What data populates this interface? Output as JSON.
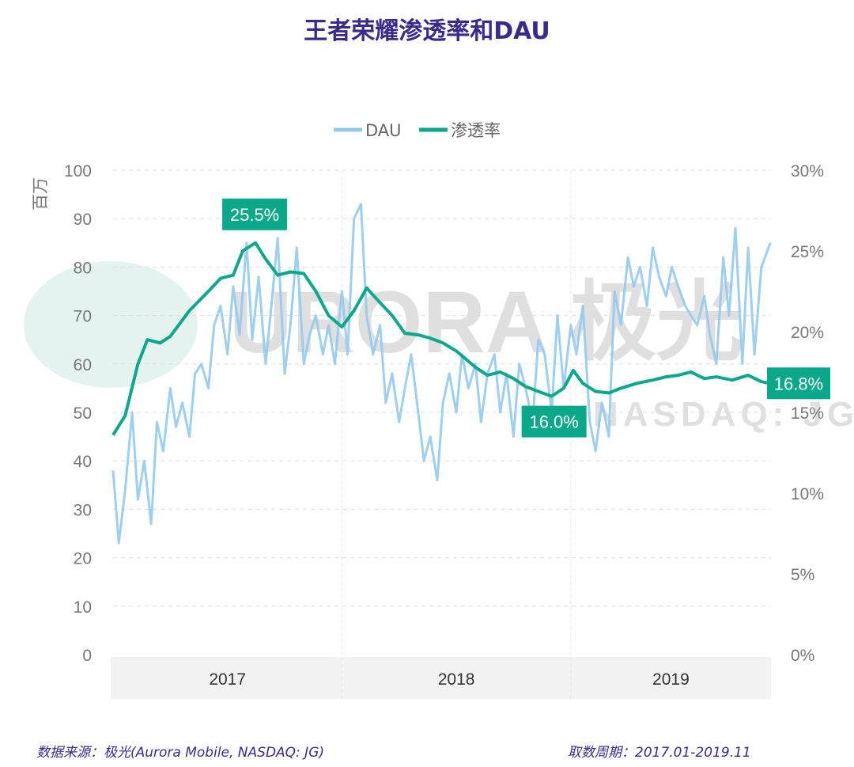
{
  "title": "王者荣耀渗透率和DAU",
  "footer": {
    "source": "数据来源：极光(Aurora Mobile, NASDAQ: JG)",
    "period": "取数周期：2017.01-2019.11"
  },
  "watermark": {
    "text": "URORA 极光",
    "subtext": "NASDAQ: JG"
  },
  "chart_data": {
    "type": "line",
    "title": "王者荣耀渗透率和DAU",
    "ylabel_left": "百万",
    "ylim_left": [
      0,
      100
    ],
    "yticks_left": [
      "0",
      "10",
      "20",
      "30",
      "40",
      "50",
      "60",
      "70",
      "80",
      "90",
      "100"
    ],
    "ylim_right": [
      0,
      30
    ],
    "yticks_right": [
      "0%",
      "5%",
      "10%",
      "15%",
      "20%",
      "25%",
      "30%"
    ],
    "x_categories": [
      "2017",
      "2018",
      "2019"
    ],
    "grid": true,
    "legend_position": "top",
    "colors": {
      "DAU": "#94c9ee",
      "渗透率": "#0aa88a",
      "title": "#3b2a8c"
    },
    "series": [
      {
        "name": "DAU",
        "axis": "left",
        "unit": "百万",
        "x": [
          "2017-01-01",
          "2017-01-10",
          "2017-01-20",
          "2017-02-01",
          "2017-02-10",
          "2017-02-20",
          "2017-03-01",
          "2017-03-10",
          "2017-03-20",
          "2017-04-01",
          "2017-04-10",
          "2017-04-20",
          "2017-05-01",
          "2017-05-10",
          "2017-05-20",
          "2017-06-01",
          "2017-06-10",
          "2017-06-20",
          "2017-07-01",
          "2017-07-10",
          "2017-07-20",
          "2017-08-01",
          "2017-08-10",
          "2017-08-20",
          "2017-09-01",
          "2017-09-10",
          "2017-09-20",
          "2017-10-01",
          "2017-10-10",
          "2017-10-20",
          "2017-11-01",
          "2017-11-10",
          "2017-11-20",
          "2017-12-01",
          "2017-12-10",
          "2017-12-20",
          "2018-01-01",
          "2018-01-10",
          "2018-01-20",
          "2018-02-01",
          "2018-02-10",
          "2018-02-20",
          "2018-03-01",
          "2018-03-10",
          "2018-03-20",
          "2018-04-01",
          "2018-04-10",
          "2018-04-20",
          "2018-05-01",
          "2018-05-10",
          "2018-05-20",
          "2018-06-01",
          "2018-06-10",
          "2018-06-20",
          "2018-07-01",
          "2018-07-10",
          "2018-07-20",
          "2018-08-01",
          "2018-08-10",
          "2018-08-20",
          "2018-09-01",
          "2018-09-10",
          "2018-09-20",
          "2018-10-01",
          "2018-10-10",
          "2018-10-20",
          "2018-11-01",
          "2018-11-10",
          "2018-11-20",
          "2018-12-01",
          "2018-12-10",
          "2018-12-20",
          "2019-01-01",
          "2019-01-10",
          "2019-01-20",
          "2019-02-01",
          "2019-02-10",
          "2019-02-20",
          "2019-03-01",
          "2019-03-10",
          "2019-03-20",
          "2019-04-01",
          "2019-04-10",
          "2019-04-20",
          "2019-05-01",
          "2019-05-10",
          "2019-05-20",
          "2019-06-01",
          "2019-06-10",
          "2019-06-20",
          "2019-07-01",
          "2019-07-10",
          "2019-07-20",
          "2019-08-01",
          "2019-08-10",
          "2019-08-20",
          "2019-09-01",
          "2019-09-10",
          "2019-09-20",
          "2019-10-01",
          "2019-10-10",
          "2019-10-20",
          "2019-11-01",
          "2019-11-15"
        ],
        "values": [
          38,
          23,
          34,
          50,
          32,
          40,
          27,
          48,
          42,
          55,
          47,
          52,
          45,
          58,
          60,
          55,
          68,
          72,
          62,
          76,
          66,
          85,
          65,
          78,
          60,
          72,
          86,
          58,
          68,
          84,
          60,
          66,
          70,
          62,
          68,
          60,
          75,
          62,
          90,
          93,
          70,
          62,
          68,
          52,
          58,
          48,
          55,
          62,
          50,
          40,
          45,
          36,
          52,
          58,
          50,
          62,
          55,
          60,
          48,
          58,
          62,
          50,
          58,
          45,
          60,
          55,
          48,
          65,
          62,
          50,
          70,
          55,
          68,
          62,
          72,
          48,
          42,
          52,
          45,
          75,
          68,
          82,
          76,
          80,
          72,
          84,
          78,
          74,
          80,
          76,
          72,
          70,
          68,
          74,
          66,
          60,
          82,
          70,
          88,
          60,
          84,
          62,
          80,
          85
        ]
      },
      {
        "name": "渗透率",
        "axis": "right",
        "unit": "%",
        "x": [
          "2017-01-01",
          "2017-01-20",
          "2017-02-10",
          "2017-02-25",
          "2017-03-15",
          "2017-04-01",
          "2017-05-01",
          "2017-06-01",
          "2017-06-20",
          "2017-07-10",
          "2017-07-25",
          "2017-08-15",
          "2017-09-01",
          "2017-09-20",
          "2017-10-10",
          "2017-11-01",
          "2017-11-20",
          "2017-12-10",
          "2018-01-01",
          "2018-01-20",
          "2018-02-10",
          "2018-03-01",
          "2018-03-20",
          "2018-04-10",
          "2018-05-01",
          "2018-05-20",
          "2018-06-10",
          "2018-07-01",
          "2018-08-01",
          "2018-08-20",
          "2018-09-10",
          "2018-10-01",
          "2018-10-20",
          "2018-11-10",
          "2018-12-01",
          "2018-12-20",
          "2019-01-05",
          "2019-01-20",
          "2019-02-10",
          "2019-03-01",
          "2019-03-20",
          "2019-04-15",
          "2019-05-10",
          "2019-06-01",
          "2019-06-20",
          "2019-07-10",
          "2019-08-01",
          "2019-08-20",
          "2019-09-15",
          "2019-10-10",
          "2019-11-01",
          "2019-11-15"
        ],
        "values": [
          13.6,
          14.8,
          18.0,
          19.5,
          19.3,
          19.7,
          21.3,
          22.5,
          23.3,
          23.5,
          25.0,
          25.5,
          24.5,
          23.5,
          23.7,
          23.6,
          22.5,
          21.0,
          20.3,
          21.3,
          22.7,
          21.8,
          21.0,
          19.9,
          19.8,
          19.6,
          19.3,
          18.8,
          17.8,
          17.3,
          17.5,
          17.1,
          16.6,
          16.3,
          16.0,
          16.5,
          17.6,
          16.8,
          16.3,
          16.2,
          16.5,
          16.8,
          17.0,
          17.2,
          17.3,
          17.5,
          17.1,
          17.2,
          17.0,
          17.3,
          16.9,
          16.8
        ],
        "annotations": [
          {
            "label": "25.5%",
            "x": "2017-08-15",
            "value": 25.5
          },
          {
            "label": "16.0%",
            "x": "2018-12-01",
            "value": 16.0
          },
          {
            "label": "16.8%",
            "x": "2019-11-15",
            "value": 16.8
          }
        ]
      }
    ]
  }
}
